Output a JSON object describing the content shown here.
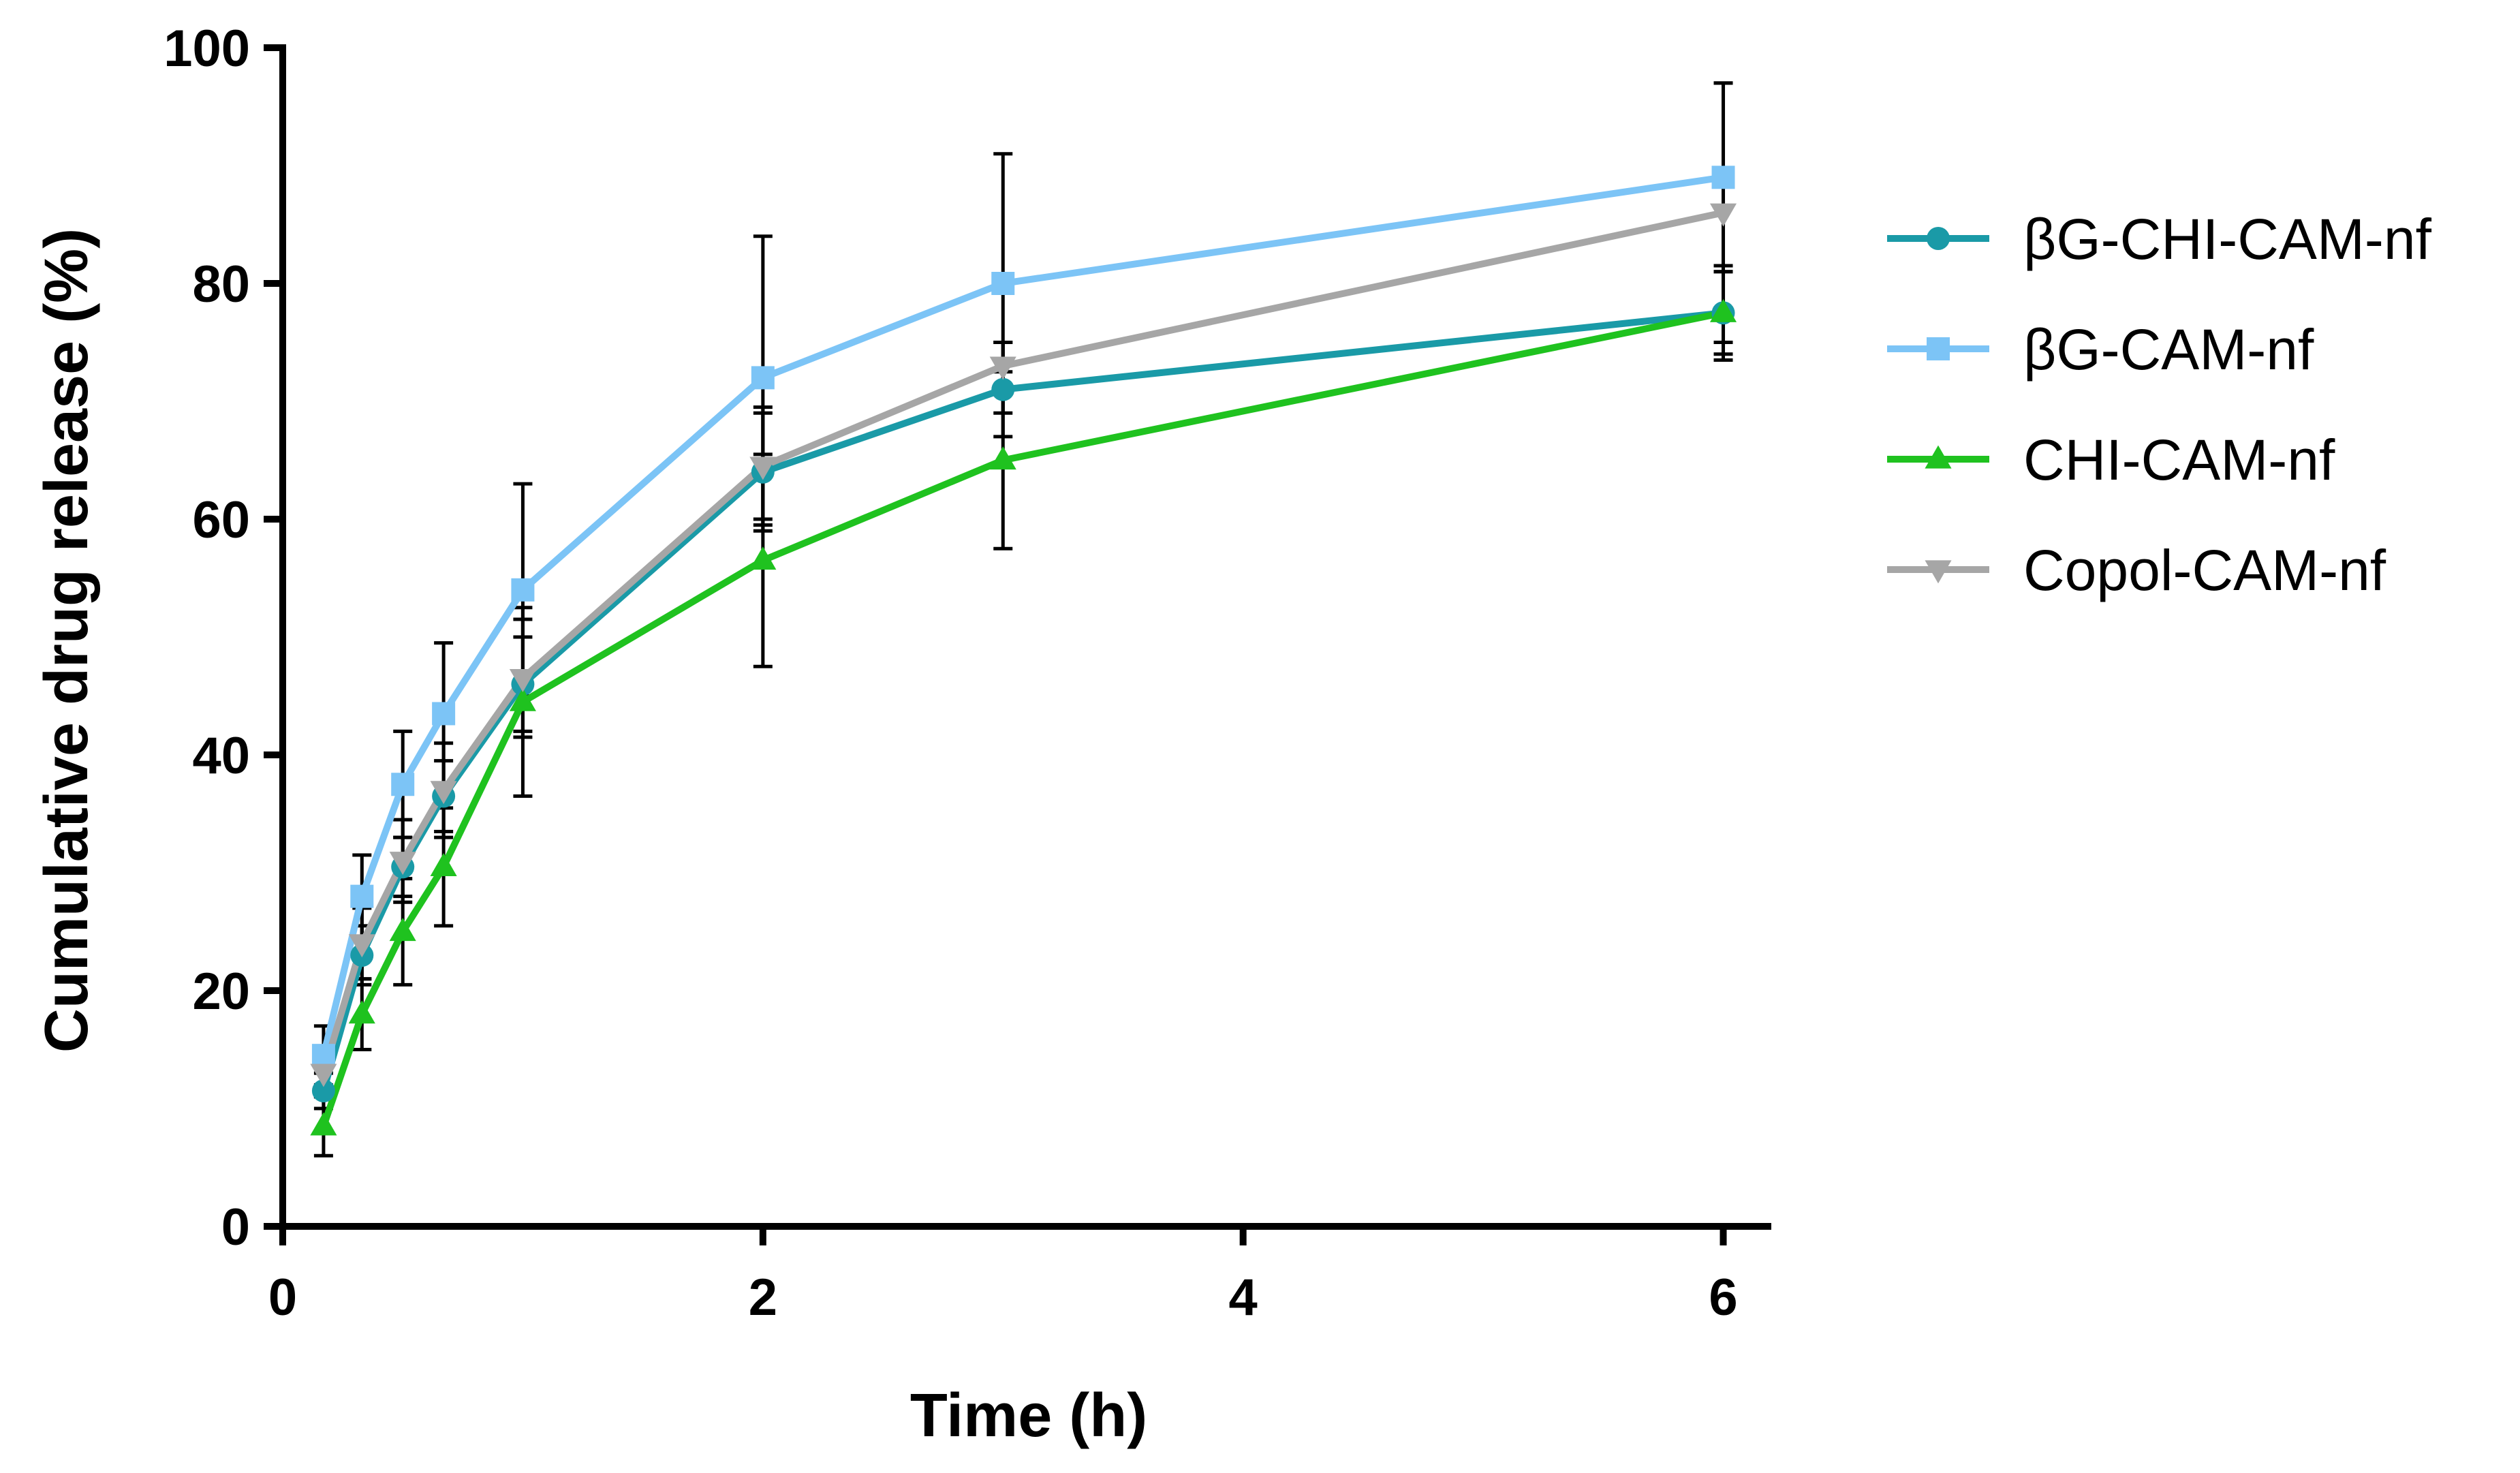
{
  "chart_data": {
    "type": "line",
    "title": "",
    "xlabel": "Time (h)",
    "ylabel": "Cumulative drug release (%)",
    "xlim": [
      0,
      6.2
    ],
    "ylim": [
      0,
      100
    ],
    "xticks": [
      0,
      2,
      4,
      6
    ],
    "yticks": [
      0,
      20,
      40,
      60,
      80,
      100
    ],
    "legend_position": "right",
    "series": [
      {
        "name": "βG-CHI-CAM-nf",
        "color": "#1a9aa7",
        "marker": "circle",
        "x": [
          0.17,
          0.33,
          0.5,
          0.67,
          1,
          2,
          3,
          6
        ],
        "values": [
          11.5,
          23,
          30.5,
          36.5,
          46,
          64,
          71,
          77.5
        ],
        "error": [
          1.5,
          2.5,
          2.5,
          3,
          4,
          5,
          4,
          4
        ]
      },
      {
        "name": "βG-CAM-nf",
        "color": "#7cc4f6",
        "marker": "square",
        "x": [
          0.17,
          0.33,
          0.5,
          0.67,
          1,
          2,
          3,
          6
        ],
        "values": [
          14.5,
          28,
          37.5,
          43.5,
          54,
          72,
          80,
          89
        ],
        "error": [
          2.5,
          3.5,
          4.5,
          6,
          9,
          12,
          11,
          8
        ]
      },
      {
        "name": "CHI-CAM-nf",
        "color": "#1fc21f",
        "marker": "triangle-up",
        "x": [
          0.17,
          0.33,
          0.5,
          0.67,
          1,
          2,
          3,
          6
        ],
        "values": [
          8.5,
          18,
          25,
          30.5,
          44.5,
          56.5,
          65,
          77.5
        ],
        "error": [
          2.5,
          3,
          4.5,
          5,
          8,
          9,
          7.5,
          3.5
        ]
      },
      {
        "name": "Copol-CAM-nf",
        "color": "#a6a6a6",
        "marker": "triangle-down",
        "x": [
          0.17,
          0.33,
          0.5,
          0.67,
          1,
          2,
          3,
          6
        ],
        "values": [
          13,
          24,
          31,
          37,
          46.5,
          64.5,
          73,
          86
        ],
        "error": [
          2,
          3,
          3.5,
          4,
          5,
          5,
          2,
          11
        ]
      }
    ]
  }
}
